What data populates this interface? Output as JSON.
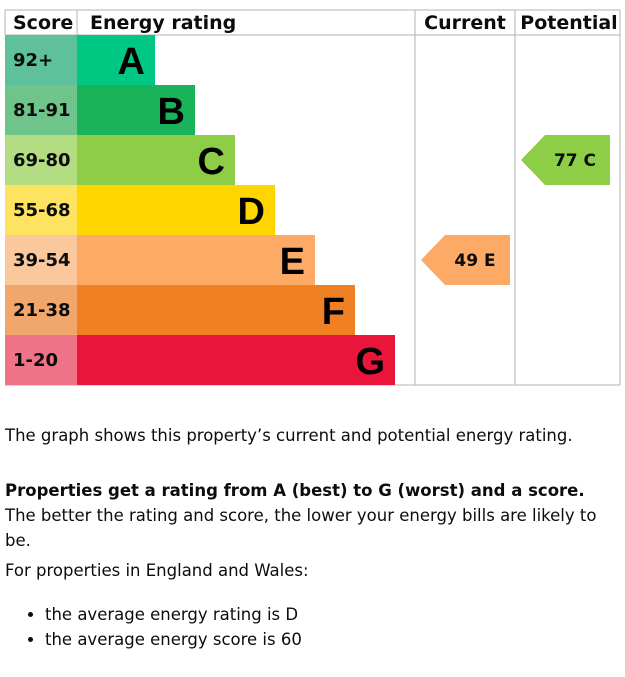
{
  "chart_data": {
    "type": "bar",
    "headers": {
      "score": "Score",
      "rating": "Energy rating",
      "current": "Current",
      "potential": "Potential"
    },
    "bands": [
      {
        "letter": "A",
        "range": "92+",
        "color": "#00c781",
        "score_color": "#5ec19c"
      },
      {
        "letter": "B",
        "range": "81-91",
        "color": "#19b459",
        "score_color": "#6fc48c"
      },
      {
        "letter": "C",
        "range": "69-80",
        "color": "#8dce46",
        "score_color": "#b4dd83"
      },
      {
        "letter": "D",
        "range": "55-68",
        "color": "#ffd500",
        "score_color": "#fde35f"
      },
      {
        "letter": "E",
        "range": "39-54",
        "color": "#fcaa65",
        "score_color": "#fac89c"
      },
      {
        "letter": "F",
        "range": "21-38",
        "color": "#ef8023",
        "score_color": "#f1a76b"
      },
      {
        "letter": "G",
        "range": "1-20",
        "color": "#e9153b",
        "score_color": "#ef7488"
      }
    ],
    "current": {
      "score": 49,
      "letter": "E",
      "label": "49 E",
      "color": "#fcaa65"
    },
    "potential": {
      "score": 77,
      "letter": "C",
      "label": "77 C",
      "color": "#8dce46"
    },
    "grid_color": "#b1b4b6"
  },
  "description": {
    "line1": "The graph shows this property’s current and potential energy rating.",
    "bold": "Properties get a rating from A (best) to G (worst) and a score.",
    "rest": " The better the rating and score, the lower your energy bills are likely to be.",
    "line3": "For properties in England and Wales:",
    "bullets": [
      "the average energy rating is D",
      "the average energy score is 60"
    ]
  }
}
